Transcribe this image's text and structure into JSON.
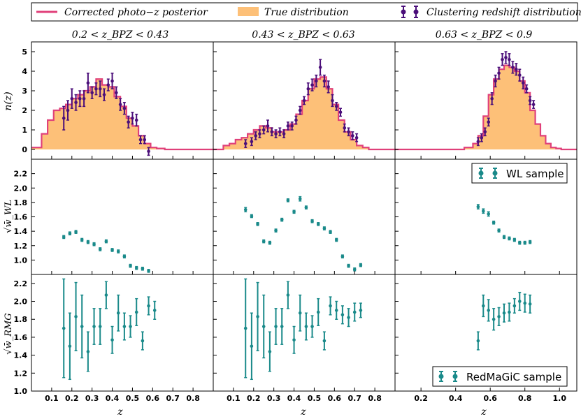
{
  "colors": {
    "posterior": "#e0407a",
    "truefill": "#fdc078",
    "truestroke": "#e0407a",
    "clustering": "#4b0f7a",
    "teal": "#1a8a8a"
  },
  "legend": {
    "posterior_label": "Corrected photo−z posterior",
    "true_label": "True distribution",
    "clustering_label": "Clustering redshift distribution"
  },
  "col_titles": [
    "0.2 < z_BPZ < 0.43",
    "0.43 < z_BPZ < 0.63",
    "0.63 < z_BPZ < 0.9"
  ],
  "row_labels": [
    "n(z)",
    "√w̄_WL",
    "√w̄_RMG"
  ],
  "xlabel": "z",
  "panel_legends": {
    "wl": "WL sample",
    "rmg": "RedMaGiC sample"
  },
  "chart_data": [
    {
      "type": "histogram+errorbar",
      "title": "0.2 < z_BPZ < 0.43",
      "ylabel": "n(z)",
      "xlim": [
        0,
        0.9
      ],
      "ylim": [
        -0.5,
        5.5
      ],
      "yticks": [
        0,
        1,
        2,
        3,
        4,
        5
      ],
      "hist_edges": [
        0,
        0.05,
        0.08,
        0.11,
        0.14,
        0.17,
        0.2,
        0.23,
        0.26,
        0.29,
        0.32,
        0.35,
        0.38,
        0.41,
        0.44,
        0.47,
        0.5,
        0.53,
        0.56,
        0.59,
        0.62,
        0.66,
        0.9
      ],
      "hist_values": [
        0.1,
        0.8,
        1.5,
        2.0,
        2.1,
        2.3,
        2.6,
        2.8,
        3.0,
        3.2,
        3.6,
        3.3,
        3.2,
        2.7,
        2.2,
        1.6,
        1.2,
        0.7,
        0.3,
        0.1,
        0.05,
        0.0
      ],
      "points": {
        "x": [
          0.16,
          0.18,
          0.2,
          0.22,
          0.24,
          0.26,
          0.28,
          0.3,
          0.32,
          0.34,
          0.36,
          0.38,
          0.4,
          0.42,
          0.44,
          0.46,
          0.48,
          0.5,
          0.52,
          0.54,
          0.56,
          0.58
        ],
        "y": [
          1.6,
          2.0,
          2.6,
          2.4,
          2.6,
          2.6,
          3.4,
          2.9,
          3.1,
          3.1,
          2.8,
          3.3,
          3.5,
          2.9,
          2.3,
          2.1,
          1.4,
          1.6,
          1.5,
          0.5,
          0.5,
          -0.1
        ],
        "err": [
          0.6,
          0.5,
          0.5,
          0.4,
          0.4,
          0.4,
          0.5,
          0.3,
          0.3,
          0.4,
          0.3,
          0.3,
          0.4,
          0.3,
          0.3,
          0.3,
          0.3,
          0.3,
          0.3,
          0.2,
          0.2,
          0.2
        ]
      }
    },
    {
      "type": "histogram+errorbar",
      "title": "0.43 < z_BPZ < 0.63",
      "xlim": [
        0,
        0.9
      ],
      "ylim": [
        -0.5,
        5.5
      ],
      "hist_edges": [
        0,
        0.05,
        0.08,
        0.11,
        0.14,
        0.17,
        0.2,
        0.23,
        0.26,
        0.29,
        0.32,
        0.35,
        0.38,
        0.41,
        0.44,
        0.47,
        0.5,
        0.53,
        0.56,
        0.59,
        0.62,
        0.65,
        0.68,
        0.71,
        0.74,
        0.77,
        0.9
      ],
      "hist_values": [
        0.0,
        0.2,
        0.3,
        0.5,
        0.6,
        0.8,
        1.0,
        1.2,
        1.1,
        0.9,
        0.9,
        1.0,
        1.3,
        1.8,
        2.5,
        3.1,
        3.6,
        3.7,
        3.1,
        2.3,
        1.5,
        0.9,
        0.5,
        0.2,
        0.1,
        0.0
      ],
      "points": {
        "x": [
          0.16,
          0.19,
          0.21,
          0.23,
          0.25,
          0.27,
          0.29,
          0.31,
          0.33,
          0.35,
          0.37,
          0.39,
          0.41,
          0.43,
          0.45,
          0.47,
          0.49,
          0.51,
          0.53,
          0.55,
          0.57,
          0.59,
          0.61,
          0.63,
          0.65,
          0.67,
          0.69,
          0.71
        ],
        "y": [
          0.3,
          0.4,
          0.7,
          0.8,
          1.0,
          1.2,
          0.9,
          0.8,
          0.9,
          0.8,
          1.2,
          1.2,
          1.5,
          2.0,
          2.5,
          3.1,
          3.3,
          3.5,
          4.2,
          3.5,
          3.2,
          2.5,
          2.2,
          1.9,
          1.1,
          0.9,
          0.7,
          0.6
        ],
        "err": [
          0.2,
          0.2,
          0.2,
          0.2,
          0.2,
          0.3,
          0.2,
          0.2,
          0.2,
          0.2,
          0.2,
          0.2,
          0.2,
          0.2,
          0.2,
          0.3,
          0.3,
          0.3,
          0.4,
          0.3,
          0.3,
          0.3,
          0.2,
          0.2,
          0.2,
          0.2,
          0.2,
          0.2
        ]
      }
    },
    {
      "type": "histogram+errorbar",
      "title": "0.63 < z_BPZ < 0.9",
      "xlim": [
        0.05,
        1.1
      ],
      "ylim": [
        -0.5,
        5.5
      ],
      "hist_edges": [
        0.05,
        0.45,
        0.5,
        0.53,
        0.56,
        0.59,
        0.62,
        0.65,
        0.68,
        0.71,
        0.74,
        0.77,
        0.8,
        0.83,
        0.86,
        0.89,
        0.92,
        0.95,
        0.98,
        1.01,
        1.1
      ],
      "hist_values": [
        0.0,
        0.1,
        0.3,
        0.7,
        1.7,
        2.8,
        3.6,
        4.1,
        4.3,
        4.2,
        4.0,
        3.5,
        2.9,
        2.0,
        1.3,
        0.7,
        0.3,
        0.1,
        0.05,
        0.0
      ],
      "points": {
        "x": [
          0.53,
          0.55,
          0.57,
          0.59,
          0.61,
          0.63,
          0.65,
          0.67,
          0.69,
          0.71,
          0.73,
          0.75,
          0.77,
          0.79,
          0.81,
          0.83,
          0.85
        ],
        "y": [
          0.4,
          0.6,
          0.9,
          1.4,
          2.6,
          3.5,
          3.9,
          4.6,
          4.7,
          4.6,
          4.2,
          4.1,
          3.8,
          3.4,
          3.1,
          2.5,
          2.3
        ],
        "err": [
          0.2,
          0.2,
          0.2,
          0.2,
          0.3,
          0.3,
          0.3,
          0.3,
          0.3,
          0.3,
          0.3,
          0.3,
          0.3,
          0.3,
          0.2,
          0.2,
          0.2
        ]
      }
    },
    {
      "type": "errorbar",
      "ylabel": "√w̄_WL",
      "xlim": [
        0,
        0.9
      ],
      "ylim": [
        0.8,
        2.4
      ],
      "yticks": [
        1.0,
        1.2,
        1.4,
        1.6,
        1.8,
        2.0,
        2.2
      ],
      "points": {
        "x": [
          0.16,
          0.19,
          0.22,
          0.25,
          0.28,
          0.31,
          0.34,
          0.37,
          0.4,
          0.43,
          0.46,
          0.49,
          0.52,
          0.55,
          0.58
        ],
        "y": [
          1.32,
          1.37,
          1.39,
          1.28,
          1.25,
          1.22,
          1.15,
          1.26,
          1.14,
          1.12,
          1.05,
          0.92,
          0.89,
          0.88,
          0.85
        ],
        "err": [
          0.02,
          0.02,
          0.02,
          0.02,
          0.02,
          0.02,
          0.02,
          0.02,
          0.02,
          0.02,
          0.02,
          0.02,
          0.02,
          0.02,
          0.02
        ]
      }
    },
    {
      "type": "errorbar",
      "xlim": [
        0,
        0.9
      ],
      "ylim": [
        0.8,
        2.4
      ],
      "points": {
        "x": [
          0.16,
          0.19,
          0.22,
          0.25,
          0.28,
          0.31,
          0.34,
          0.37,
          0.4,
          0.43,
          0.46,
          0.49,
          0.52,
          0.55,
          0.58,
          0.61,
          0.64,
          0.67,
          0.7,
          0.73
        ],
        "y": [
          1.7,
          1.61,
          1.5,
          1.26,
          1.24,
          1.41,
          1.56,
          1.83,
          1.67,
          1.85,
          1.73,
          1.54,
          1.5,
          1.44,
          1.39,
          1.28,
          1.05,
          0.92,
          0.87,
          0.93
        ],
        "err": [
          0.03,
          0.02,
          0.02,
          0.02,
          0.02,
          0.02,
          0.02,
          0.02,
          0.02,
          0.03,
          0.02,
          0.02,
          0.02,
          0.02,
          0.02,
          0.02,
          0.02,
          0.02,
          0.02,
          0.02
        ]
      }
    },
    {
      "type": "errorbar",
      "xlim": [
        0.05,
        1.1
      ],
      "ylim": [
        0.8,
        2.4
      ],
      "legend": "WL sample",
      "points": {
        "x": [
          0.53,
          0.56,
          0.59,
          0.62,
          0.65,
          0.68,
          0.71,
          0.74,
          0.77,
          0.8,
          0.83
        ],
        "y": [
          1.74,
          1.68,
          1.64,
          1.52,
          1.41,
          1.32,
          1.3,
          1.28,
          1.24,
          1.24,
          1.25
        ],
        "err": [
          0.03,
          0.03,
          0.03,
          0.02,
          0.02,
          0.02,
          0.02,
          0.02,
          0.02,
          0.02,
          0.02
        ]
      }
    },
    {
      "type": "errorbar",
      "ylabel": "√w̄_RMG",
      "xlabel": "z",
      "xlim": [
        0,
        0.9
      ],
      "ylim": [
        1.0,
        2.3
      ],
      "yticks": [
        1.0,
        1.2,
        1.4,
        1.6,
        1.8,
        2.0,
        2.2
      ],
      "xticks": [
        0.1,
        0.2,
        0.3,
        0.4,
        0.5,
        0.6,
        0.7,
        0.8
      ],
      "points": {
        "x": [
          0.16,
          0.19,
          0.22,
          0.25,
          0.28,
          0.31,
          0.34,
          0.37,
          0.4,
          0.43,
          0.46,
          0.49,
          0.52,
          0.55,
          0.58,
          0.61
        ],
        "y": [
          1.7,
          1.5,
          1.83,
          1.72,
          1.44,
          1.72,
          1.72,
          2.07,
          1.57,
          1.87,
          1.72,
          1.72,
          1.88,
          1.56,
          1.95,
          1.9
        ],
        "err": [
          0.55,
          0.37,
          0.38,
          0.35,
          0.22,
          0.2,
          0.2,
          0.15,
          0.15,
          0.2,
          0.15,
          0.12,
          0.15,
          0.1,
          0.1,
          0.1
        ]
      }
    },
    {
      "type": "errorbar",
      "xlabel": "z",
      "xlim": [
        0,
        0.9
      ],
      "ylim": [
        1.0,
        2.3
      ],
      "xticks": [
        0.1,
        0.2,
        0.3,
        0.4,
        0.5,
        0.6,
        0.7,
        0.8
      ],
      "points": {
        "x": [
          0.16,
          0.19,
          0.22,
          0.25,
          0.28,
          0.31,
          0.34,
          0.37,
          0.4,
          0.43,
          0.46,
          0.49,
          0.52,
          0.55,
          0.58,
          0.61,
          0.64,
          0.67,
          0.7,
          0.73
        ],
        "y": [
          1.7,
          1.5,
          1.83,
          1.72,
          1.44,
          1.72,
          1.72,
          2.07,
          1.57,
          1.87,
          1.72,
          1.72,
          1.88,
          1.56,
          1.95,
          1.9,
          1.85,
          1.82,
          1.88,
          1.9
        ],
        "err": [
          0.55,
          0.37,
          0.38,
          0.35,
          0.22,
          0.2,
          0.2,
          0.15,
          0.15,
          0.2,
          0.15,
          0.12,
          0.15,
          0.1,
          0.1,
          0.1,
          0.1,
          0.1,
          0.1,
          0.08
        ]
      }
    },
    {
      "type": "errorbar",
      "xlabel": "z",
      "xlim": [
        0.05,
        1.1
      ],
      "ylim": [
        1.0,
        2.3
      ],
      "xticks": [
        0.2,
        0.4,
        0.6,
        0.8,
        1.0
      ],
      "legend": "RedMaGiC sample",
      "points": {
        "x": [
          0.53,
          0.56,
          0.59,
          0.62,
          0.65,
          0.68,
          0.71,
          0.74,
          0.77,
          0.8,
          0.83
        ],
        "y": [
          1.56,
          1.95,
          1.9,
          1.8,
          1.83,
          1.87,
          1.88,
          1.95,
          2.0,
          1.98,
          1.97
        ],
        "err": [
          0.1,
          0.12,
          0.12,
          0.12,
          0.1,
          0.1,
          0.1,
          0.08,
          0.1,
          0.1,
          0.1
        ]
      }
    }
  ]
}
